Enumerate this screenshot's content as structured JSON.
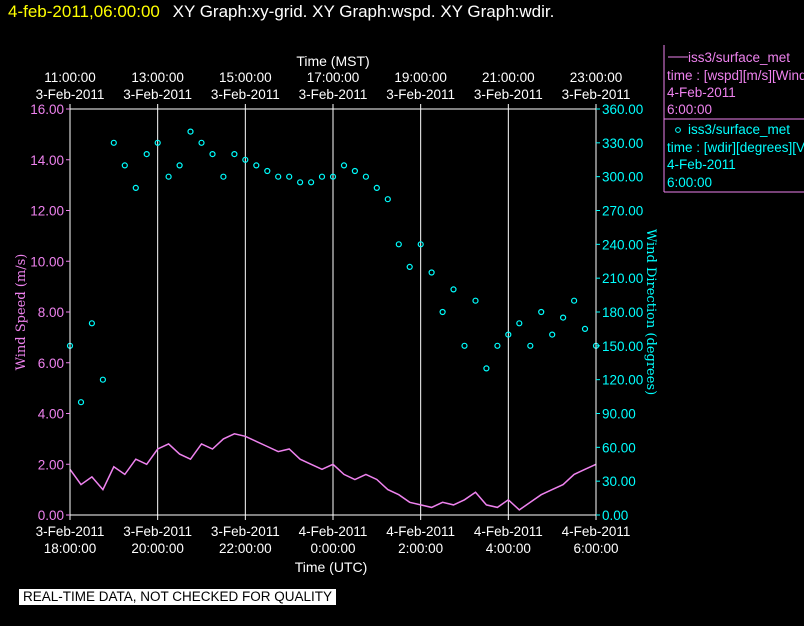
{
  "title": {
    "date": "4-feb-2011,06:00:00",
    "graphs": "XY Graph:xy-grid.  XY Graph:wspd.  XY Graph:wdir."
  },
  "note": "REAL-TIME DATA, NOT CHECKED FOR QUALITY",
  "colors": {
    "wspd": "#ee82ee",
    "wdir": "#00ffff",
    "grid": "#ffffff",
    "background": "#000000"
  },
  "chart_data": {
    "type": "line",
    "top_axis": {
      "title": "Time (MST)",
      "ticks": [
        {
          "time": "11:00:00",
          "date": "3-Feb-2011"
        },
        {
          "time": "13:00:00",
          "date": "3-Feb-2011"
        },
        {
          "time": "15:00:00",
          "date": "3-Feb-2011"
        },
        {
          "time": "17:00:00",
          "date": "3-Feb-2011"
        },
        {
          "time": "19:00:00",
          "date": "3-Feb-2011"
        },
        {
          "time": "21:00:00",
          "date": "3-Feb-2011"
        },
        {
          "time": "23:00:00",
          "date": "3-Feb-2011"
        }
      ]
    },
    "bottom_axis": {
      "title": "Time (UTC)",
      "ticks": [
        {
          "date": "3-Feb-2011",
          "time": "18:00:00"
        },
        {
          "date": "3-Feb-2011",
          "time": "20:00:00"
        },
        {
          "date": "3-Feb-2011",
          "time": "22:00:00"
        },
        {
          "date": "4-Feb-2011",
          "time": "0:00:00"
        },
        {
          "date": "4-Feb-2011",
          "time": "2:00:00"
        },
        {
          "date": "4-Feb-2011",
          "time": "4:00:00"
        },
        {
          "date": "4-Feb-2011",
          "time": "6:00:00"
        }
      ]
    },
    "x_range_utc_hours": [
      18,
      30
    ],
    "y_left": {
      "title": "Wind Speed (m/s)",
      "range": [
        0,
        16
      ],
      "ticks": [
        "0.00",
        "2.00",
        "4.00",
        "6.00",
        "8.00",
        "10.00",
        "12.00",
        "14.00",
        "16.00"
      ]
    },
    "y_right": {
      "title": "Wind Direction (degrees)",
      "range": [
        0,
        360
      ],
      "ticks": [
        "0.00",
        "30.00",
        "60.00",
        "90.00",
        "120.00",
        "150.00",
        "180.00",
        "210.00",
        "240.00",
        "270.00",
        "300.00",
        "330.00",
        "360.00"
      ]
    },
    "grid": "vertical lines at each time tick",
    "legend": [
      {
        "marker": "line",
        "line1": "iss3/surface_met",
        "line2": "time : [wspd][m/s][Wind",
        "line3": "4-Feb-2011",
        "line4": "6:00:00"
      },
      {
        "marker": "circle",
        "line1": "iss3/surface_met",
        "line2": "time : [wdir][degrees][V",
        "line3": "4-Feb-2011",
        "line4": "6:00:00"
      }
    ],
    "series": [
      {
        "name": "wspd",
        "axis": "left",
        "style": "line",
        "x": [
          18.0,
          18.25,
          18.5,
          18.75,
          19.0,
          19.25,
          19.5,
          19.75,
          20.0,
          20.25,
          20.5,
          20.75,
          21.0,
          21.25,
          21.5,
          21.75,
          22.0,
          22.25,
          22.5,
          22.75,
          23.0,
          23.25,
          23.5,
          23.75,
          24.0,
          24.25,
          24.5,
          24.75,
          25.0,
          25.25,
          25.5,
          25.75,
          26.0,
          26.25,
          26.5,
          26.75,
          27.0,
          27.25,
          27.5,
          27.75,
          28.0,
          28.25,
          28.5,
          28.75,
          29.0,
          29.25,
          29.5,
          29.75,
          30.0
        ],
        "y": [
          1.8,
          1.2,
          1.5,
          1.0,
          1.9,
          1.6,
          2.2,
          2.0,
          2.6,
          2.8,
          2.4,
          2.2,
          2.8,
          2.6,
          3.0,
          3.2,
          3.1,
          2.9,
          2.7,
          2.5,
          2.6,
          2.2,
          2.0,
          1.8,
          2.0,
          1.6,
          1.4,
          1.6,
          1.4,
          1.0,
          0.8,
          0.5,
          0.4,
          0.3,
          0.5,
          0.4,
          0.6,
          0.9,
          0.4,
          0.3,
          0.6,
          0.2,
          0.5,
          0.8,
          1.0,
          1.2,
          1.6,
          1.8,
          2.0
        ]
      },
      {
        "name": "wdir",
        "axis": "right",
        "style": "markers",
        "x": [
          18.0,
          18.25,
          18.5,
          18.75,
          19.0,
          19.25,
          19.5,
          19.75,
          20.0,
          20.25,
          20.5,
          20.75,
          21.0,
          21.25,
          21.5,
          21.75,
          22.0,
          22.25,
          22.5,
          22.75,
          23.0,
          23.25,
          23.5,
          23.75,
          24.0,
          24.25,
          24.5,
          24.75,
          25.0,
          25.25,
          25.5,
          25.75,
          26.0,
          26.25,
          26.5,
          26.75,
          27.0,
          27.25,
          27.5,
          27.75,
          28.0,
          28.25,
          28.5,
          28.75,
          29.0,
          29.25,
          29.5,
          29.75,
          30.0
        ],
        "y": [
          150,
          100,
          170,
          120,
          330,
          310,
          290,
          320,
          330,
          300,
          310,
          340,
          330,
          320,
          300,
          320,
          315,
          310,
          305,
          300,
          300,
          295,
          295,
          300,
          300,
          310,
          305,
          300,
          290,
          280,
          240,
          220,
          240,
          215,
          180,
          200,
          150,
          190,
          130,
          150,
          160,
          170,
          150,
          180,
          160,
          175,
          190,
          165,
          150
        ]
      }
    ]
  }
}
